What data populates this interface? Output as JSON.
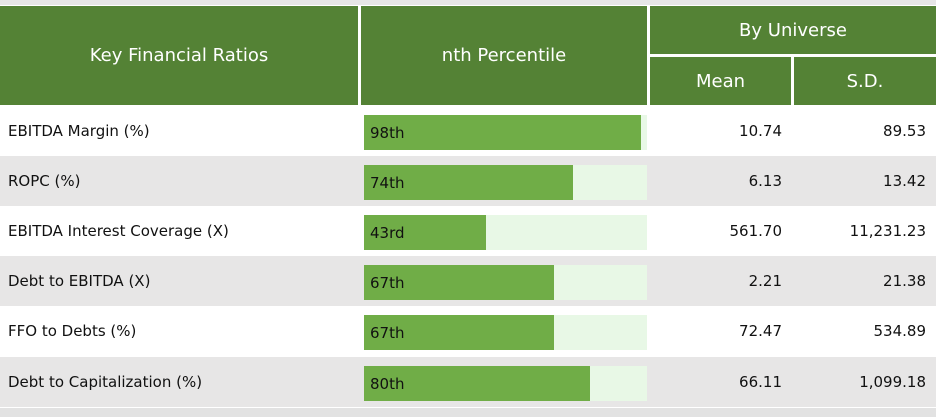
{
  "header": {
    "col1": "Key Financial Ratios",
    "col2": "nth Percentile",
    "group": "By Universe",
    "mean": "Mean",
    "sd": "S.D."
  },
  "rows": [
    {
      "name": "EBITDA Margin (%)",
      "percentile_label": "98th",
      "percentile": 98,
      "mean": "10.74",
      "sd": "89.53"
    },
    {
      "name": "ROPC (%)",
      "percentile_label": "74th",
      "percentile": 74,
      "mean": "6.13",
      "sd": "13.42"
    },
    {
      "name": "EBITDA Interest Coverage (X)",
      "percentile_label": "43rd",
      "percentile": 43,
      "mean": "561.70",
      "sd": "11,231.23"
    },
    {
      "name": "Debt to EBITDA (X)",
      "percentile_label": "67th",
      "percentile": 67,
      "mean": "2.21",
      "sd": "21.38"
    },
    {
      "name": "FFO to Debts (%)",
      "percentile_label": "67th",
      "percentile": 67,
      "mean": "72.47",
      "sd": "534.89"
    },
    {
      "name": "Debt to Capitalization (%)",
      "percentile_label": "80th",
      "percentile": 80,
      "mean": "66.11",
      "sd": "1,099.18"
    }
  ],
  "colors": {
    "header_bg": "#548235",
    "bar_fill": "#70ad47",
    "bar_track": "#e8f8e6",
    "row_alt": "#e7e6e6"
  }
}
